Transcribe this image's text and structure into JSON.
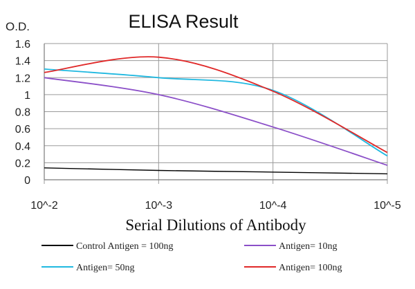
{
  "chart_data": {
    "type": "line",
    "title": "ELISA Result",
    "ylabel": "O.D.",
    "xlabel": "Serial Dilutions of Antibody",
    "x": [
      0.01,
      0.001,
      0.0001,
      1e-05
    ],
    "x_tick_labels": [
      "10^-2",
      "10^-3",
      "10^-4",
      "10^-5"
    ],
    "x_scale": "log",
    "ylim": [
      0,
      1.6
    ],
    "y_ticks": [
      0,
      0.2,
      0.4,
      0.6,
      0.8,
      1,
      1.2,
      1.4,
      1.6
    ],
    "y_tick_labels": [
      "0",
      "0.2",
      "0.4",
      "0.6",
      "0.8",
      "1",
      "1.2",
      "1.4",
      "1.6"
    ],
    "grid": true,
    "legend_position": "bottom",
    "series": [
      {
        "name": "Control Antigen = 100ng",
        "color": "#000000",
        "values": [
          0.14,
          0.11,
          0.09,
          0.07
        ]
      },
      {
        "name": "Antigen= 10ng",
        "color": "#8b4fc8",
        "values": [
          1.2,
          1.0,
          0.62,
          0.17
        ]
      },
      {
        "name": "Antigen= 50ng",
        "color": "#1fb8e0",
        "values": [
          1.3,
          1.2,
          1.05,
          0.28
        ]
      },
      {
        "name": "Antigen= 100ng",
        "color": "#e02828",
        "values": [
          1.26,
          1.44,
          1.04,
          0.32
        ]
      }
    ]
  }
}
